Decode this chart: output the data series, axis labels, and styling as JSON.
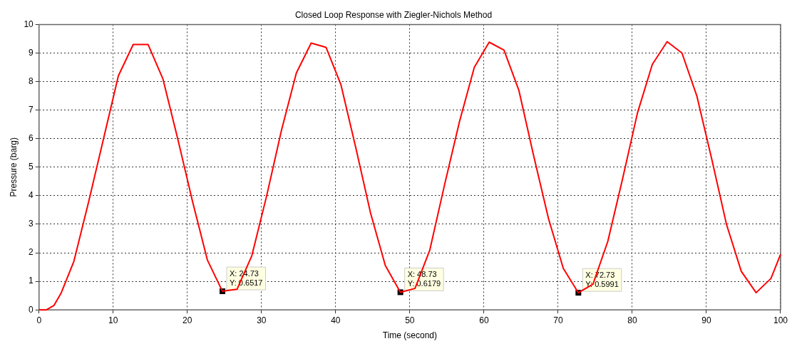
{
  "chart_data": {
    "type": "line",
    "title": "Closed Loop Response with Ziegler-Nichols Method",
    "xlabel": "Time (second)",
    "ylabel": "Pressure (barg)",
    "x": [
      0,
      1,
      2,
      3,
      4.7,
      6.7,
      8.7,
      10.7,
      12.7,
      14.7,
      16.7,
      18.7,
      20.7,
      22.7,
      24.73,
      26.7,
      28.7,
      30.7,
      32.7,
      34.7,
      36.7,
      38.7,
      40.7,
      42.7,
      44.7,
      46.7,
      48.73,
      50.7,
      52.7,
      54.7,
      56.7,
      58.7,
      60.7,
      62.7,
      64.7,
      66.7,
      68.7,
      70.7,
      72.73,
      74.7,
      76.7,
      78.7,
      80.7,
      82.7,
      84.7,
      86.7,
      88.7,
      90.7,
      92.7,
      94.7,
      96.7,
      98.7,
      100
    ],
    "series": [
      {
        "color": "#ff0000",
        "values": [
          0,
          0,
          0.15,
          0.6,
          1.7,
          3.8,
          6.0,
          8.2,
          9.3,
          9.3,
          8.1,
          6.0,
          3.8,
          1.75,
          0.6517,
          0.72,
          1.9,
          4.0,
          6.3,
          8.3,
          9.35,
          9.2,
          7.9,
          5.7,
          3.4,
          1.55,
          0.6179,
          0.75,
          2.1,
          4.4,
          6.6,
          8.5,
          9.38,
          9.1,
          7.7,
          5.4,
          3.2,
          1.45,
          0.5991,
          0.9,
          2.4,
          4.6,
          6.9,
          8.6,
          9.4,
          9.0,
          7.5,
          5.3,
          3.0,
          1.35,
          0.6,
          1.1,
          1.95
        ]
      }
    ],
    "xlim": [
      0,
      100
    ],
    "xticks": [
      0,
      10,
      20,
      30,
      40,
      50,
      60,
      70,
      80,
      90,
      100
    ],
    "ylim": [
      0,
      10
    ],
    "yticks": [
      0,
      1,
      2,
      3,
      4,
      5,
      6,
      7,
      8,
      9,
      10
    ],
    "grid": true,
    "legend": false,
    "marker": "none",
    "line_style": "solid",
    "annotations": [
      {
        "text": "X: 24.73\nY: 0.6517",
        "x": 24.73,
        "y": 0.6517
      },
      {
        "text": "X: 48.73\nY: 0.6179",
        "x": 48.73,
        "y": 0.6179
      },
      {
        "text": "X: 72.73\nY: 0.5991",
        "x": 72.73,
        "y": 0.5991
      }
    ]
  }
}
